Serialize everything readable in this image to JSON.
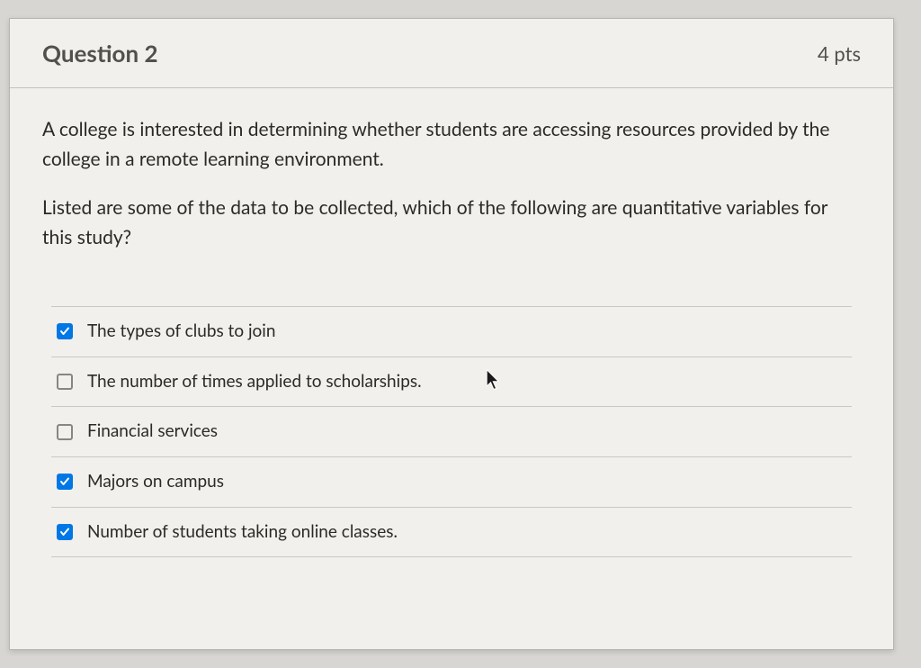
{
  "header": {
    "title": "Question 2",
    "points": "4 pts"
  },
  "prompt": {
    "p1": "A college is interested in determining whether students are accessing resources provided by the college in a remote learning environment.",
    "p2": "Listed are some of the data to be collected, which of the following are quantitative variables for this study?"
  },
  "answers": [
    {
      "label": "The types of clubs to join",
      "checked": true
    },
    {
      "label": "The number of times applied to scholarships.",
      "checked": false
    },
    {
      "label": "Financial services",
      "checked": false
    },
    {
      "label": "Majors on campus",
      "checked": true
    },
    {
      "label": "Number of students taking online classes.",
      "checked": true
    }
  ],
  "colors": {
    "page_bg": "#d8d6d2",
    "card_bg": "#f2f0ec",
    "border": "#b8b6b2",
    "divider": "#cac8c4",
    "text_heading": "#52504c",
    "text_body": "#2b2a28",
    "checkbox_checked": "#0077e6",
    "checkbox_border": "#888682"
  }
}
